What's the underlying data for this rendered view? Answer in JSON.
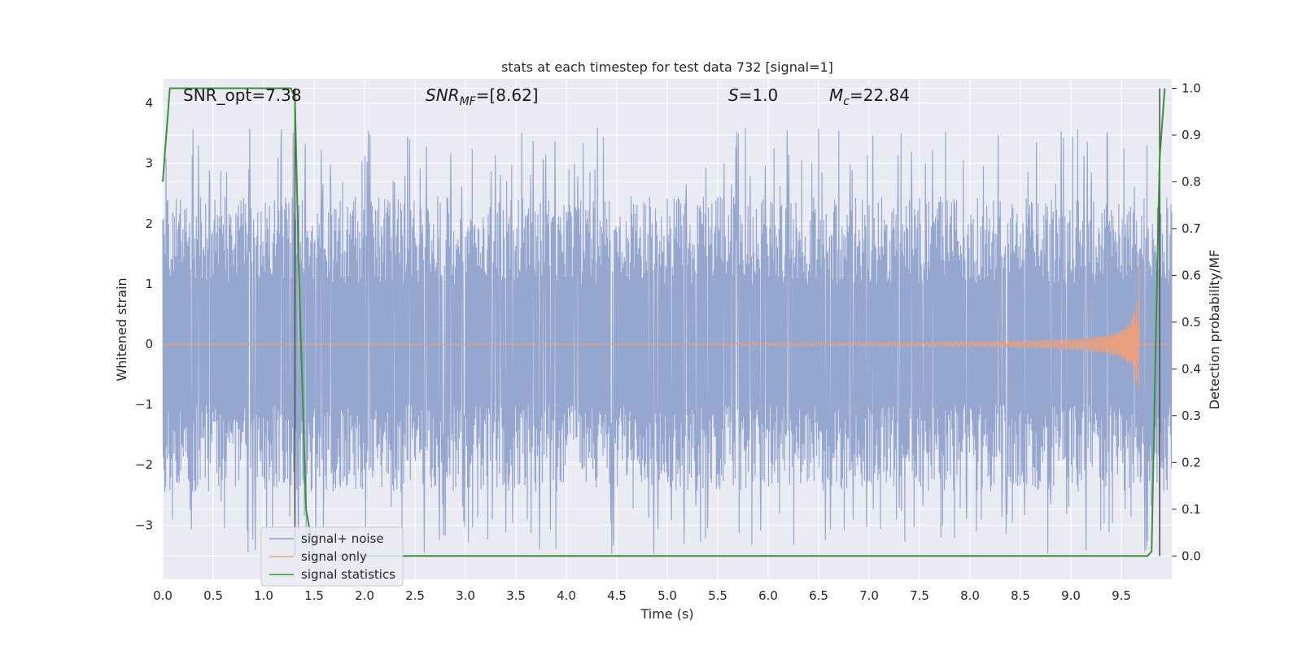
{
  "chart_data": {
    "type": "line",
    "title": "stats at each timestep for test data 732 [signal=1]",
    "xlabel": "Time (s)",
    "ylabel_left": "Whitened strain",
    "ylabel_right": "Detection probability/MF",
    "xlim": [
      0.0,
      10.0
    ],
    "ylim_left": [
      -3.9,
      4.4
    ],
    "ylim_right": [
      -0.05,
      1.02
    ],
    "x_ticks": [
      "0.0",
      "0.5",
      "1.0",
      "1.5",
      "2.0",
      "2.5",
      "3.0",
      "3.5",
      "4.0",
      "4.5",
      "5.0",
      "5.5",
      "6.0",
      "6.5",
      "7.0",
      "7.5",
      "8.0",
      "8.5",
      "9.0",
      "9.5"
    ],
    "y_ticks_left": [
      "4",
      "3",
      "2",
      "1",
      "0",
      "−1",
      "−2",
      "−3"
    ],
    "y_ticks_right": [
      "1.0",
      "0.9",
      "0.8",
      "0.7",
      "0.6",
      "0.5",
      "0.4",
      "0.3",
      "0.2",
      "0.1",
      "0.0"
    ],
    "grid": true,
    "legend_position": "lower-left",
    "annotations": {
      "snr_opt": "SNR_opt=7.38",
      "snr_mf_label": "SNR",
      "snr_mf_sub": "MF",
      "snr_mf_value": "=[8.62]",
      "s_label": "S",
      "s_value": "=1.0",
      "mc_label": "M",
      "mc_sub": "c",
      "mc_value": "=22.84"
    },
    "series": [
      {
        "name": "signal+ noise",
        "color": "#8da0cb",
        "description": "noisy whitened strain, roughly ±2.4 with peaks to ±3.5"
      },
      {
        "name": "signal only",
        "color": "#e8a080",
        "chirp_start": 5.5,
        "merger_time": 9.68,
        "peak_amplitude": 1.5
      },
      {
        "name": "signal statistics",
        "color": "#3a923a",
        "x": [
          0.0,
          0.07,
          0.12,
          0.3,
          0.6,
          0.9,
          1.2,
          1.27,
          1.31,
          1.35,
          1.42,
          1.5,
          2.0,
          5.0,
          8.0,
          9.6,
          9.76,
          9.8,
          9.84,
          9.88,
          9.93
        ],
        "y": [
          0.8,
          1.0,
          1.0,
          1.0,
          1.0,
          1.0,
          1.0,
          1.0,
          0.98,
          0.6,
          0.1,
          0.0,
          0.0,
          0.0,
          0.0,
          0.0,
          0.0,
          0.01,
          0.45,
          0.85,
          1.0
        ]
      }
    ],
    "vertical_markers": [
      1.31,
      9.88
    ],
    "colors": {
      "plot_bg": "#eaeaf2",
      "grid": "#ffffff",
      "marker_line": "#4a4a4a"
    }
  }
}
